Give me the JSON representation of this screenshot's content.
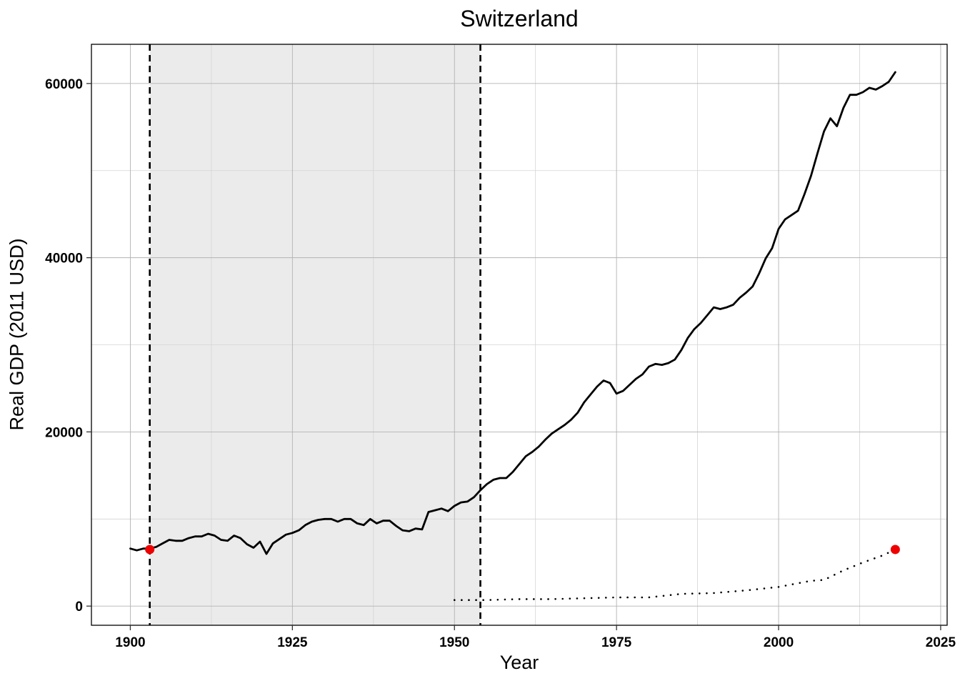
{
  "chart_data": {
    "type": "line",
    "title": "Switzerland",
    "xlabel": "Year",
    "ylabel": "Real GDP (2011 USD)",
    "xlim": [
      1894,
      2026
    ],
    "ylim": [
      -2200,
      64500
    ],
    "xticks": [
      1900,
      1925,
      1950,
      1975,
      2000,
      2025
    ],
    "yticks": [
      0,
      20000,
      40000,
      60000
    ],
    "grid": true,
    "shaded_region": [
      1903,
      1954
    ],
    "vertical_lines": [
      1903,
      1954
    ],
    "series": [
      {
        "style": "solid",
        "color": "#000000",
        "x": [
          1900,
          1901,
          1902,
          1903,
          1904,
          1905,
          1906,
          1907,
          1908,
          1909,
          1910,
          1911,
          1912,
          1913,
          1914,
          1915,
          1916,
          1917,
          1918,
          1919,
          1920,
          1921,
          1922,
          1923,
          1924,
          1925,
          1926,
          1927,
          1928,
          1929,
          1930,
          1931,
          1932,
          1933,
          1934,
          1935,
          1936,
          1937,
          1938,
          1939,
          1940,
          1941,
          1942,
          1943,
          1944,
          1945,
          1946,
          1947,
          1948,
          1949,
          1950,
          1951,
          1952,
          1953,
          1954,
          1955,
          1956,
          1957,
          1958,
          1959,
          1960,
          1961,
          1962,
          1963,
          1964,
          1965,
          1966,
          1967,
          1968,
          1969,
          1970,
          1971,
          1972,
          1973,
          1974,
          1975,
          1976,
          1977,
          1978,
          1979,
          1980,
          1981,
          1982,
          1983,
          1984,
          1985,
          1986,
          1987,
          1988,
          1989,
          1990,
          1991,
          1992,
          1993,
          1994,
          1995,
          1996,
          1997,
          1998,
          1999,
          2000,
          2001,
          2002,
          2003,
          2004,
          2005,
          2006,
          2007,
          2008,
          2009,
          2010,
          2011,
          2012,
          2013,
          2014,
          2015,
          2016,
          2017,
          2018
        ],
        "values": [
          6600,
          6400,
          6600,
          6600,
          6800,
          7200,
          7600,
          7500,
          7500,
          7800,
          8000,
          8000,
          8300,
          8100,
          7600,
          7500,
          8100,
          7800,
          7100,
          6700,
          7400,
          6000,
          7200,
          7700,
          8200,
          8400,
          8700,
          9300,
          9700,
          9900,
          10000,
          10000,
          9700,
          10000,
          10000,
          9500,
          9300,
          10000,
          9500,
          9800,
          9800,
          9200,
          8700,
          8600,
          8900,
          8800,
          10800,
          11000,
          11200,
          10900,
          11500,
          11900,
          12000,
          12500,
          13300,
          14000,
          14500,
          14700,
          14700,
          15400,
          16300,
          17200,
          17700,
          18300,
          19100,
          19800,
          20300,
          20800,
          21400,
          22200,
          23400,
          24300,
          25200,
          25900,
          25600,
          24400,
          24700,
          25400,
          26100,
          26600,
          27500,
          27800,
          27700,
          27900,
          28300,
          29400,
          30800,
          31800,
          32500,
          33400,
          34300,
          34100,
          34300,
          34600,
          35400,
          36000,
          36700,
          38200,
          39900,
          41100,
          43300,
          44400,
          44900,
          45400,
          47300,
          49400,
          52000,
          54500,
          56000,
          55100,
          57200,
          58700,
          58700,
          59000,
          59500,
          59300,
          59700,
          60200,
          61300
        ]
      },
      {
        "style": "dotted",
        "color": "#000000",
        "x": [
          1950,
          1955,
          1960,
          1965,
          1970,
          1975,
          1980,
          1985,
          1990,
          1995,
          2000,
          2005,
          2007,
          2010,
          2013,
          2016,
          2018
        ],
        "values": [
          700,
          700,
          800,
          800,
          900,
          1000,
          1000,
          1400,
          1500,
          1800,
          2200,
          2900,
          3000,
          4100,
          5000,
          5800,
          6500
        ]
      }
    ],
    "markers": [
      {
        "x": 1903,
        "y": 6500,
        "color": "#ee0000"
      },
      {
        "x": 2018,
        "y": 6500,
        "color": "#ee0000"
      }
    ]
  }
}
